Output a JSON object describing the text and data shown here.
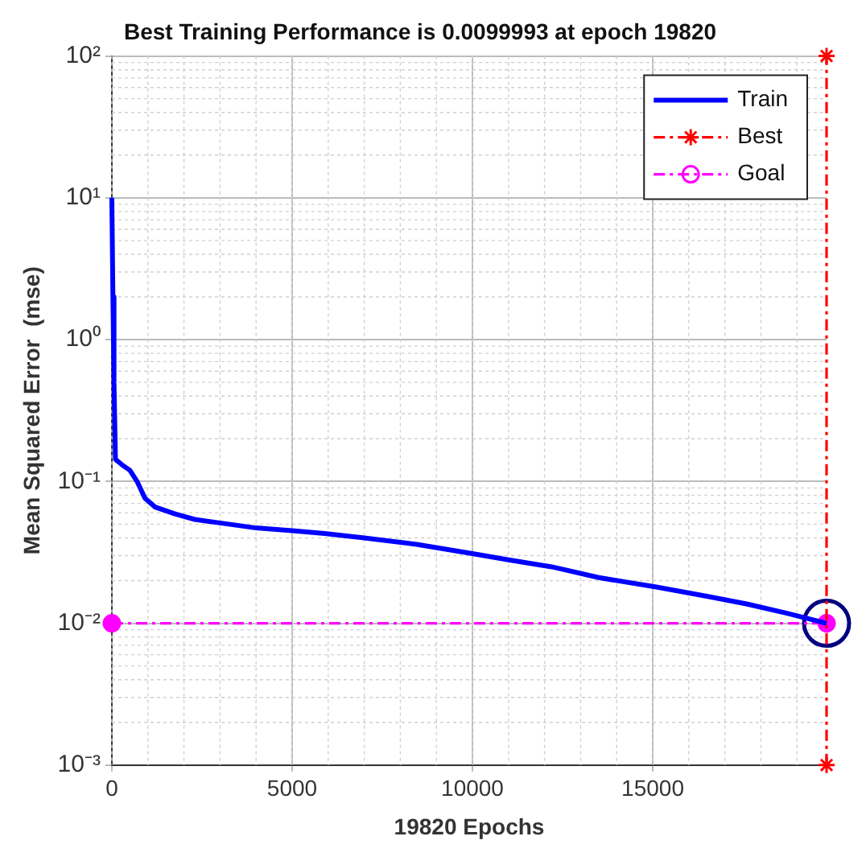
{
  "chart_data": {
    "type": "line",
    "title": "Best Training Performance is 0.0099993 at epoch 19820",
    "xlabel": "19820 Epochs",
    "ylabel": "Mean Squared Error  (mse)",
    "log": "y",
    "grid": true,
    "legend": "top right",
    "xlim": [
      0,
      19820
    ],
    "xticks": [
      0,
      5000,
      10000,
      15000
    ],
    "ylim": [
      0.001,
      100
    ],
    "yticks": [
      {
        "value": 0.001,
        "label": "10⁻³"
      },
      {
        "value": 0.01,
        "label": "10⁻²"
      },
      {
        "value": 0.1,
        "label": "10⁻¹"
      },
      {
        "value": 1,
        "label": "10⁰"
      },
      {
        "value": 10,
        "label": "10¹"
      },
      {
        "value": 100,
        "label": "10²"
      }
    ],
    "series": [
      {
        "name": "Train",
        "color": "#0000ff",
        "marker": "none",
        "line_style": "solid",
        "x": [
          0,
          30,
          60,
          100,
          300,
          500,
          700,
          920,
          1200,
          1750,
          2300,
          3000,
          4000,
          5000,
          5900,
          7000,
          8450,
          10000,
          11000,
          12200,
          13500,
          15100,
          16500,
          17600,
          18700,
          19820
        ],
        "values": [
          10,
          2,
          0.5,
          0.143,
          0.13,
          0.12,
          0.1,
          0.076,
          0.066,
          0.059,
          0.054,
          0.051,
          0.047,
          0.045,
          0.043,
          0.04,
          0.036,
          0.031,
          0.028,
          0.025,
          0.021,
          0.018,
          0.0155,
          0.0137,
          0.0118,
          0.0099993
        ]
      },
      {
        "name": "Best",
        "color": "#ff0000",
        "marker": "cross",
        "line_style": "dashed",
        "x": [
          19820,
          19820
        ],
        "values": [
          0.001,
          100
        ]
      },
      {
        "name": "Goal",
        "color": "#ff00ff",
        "marker": "circle",
        "line_style": "dashed",
        "x": [
          0,
          19820
        ],
        "values": [
          0.01,
          0.01
        ]
      },
      {
        "type": "scatter",
        "color": "#000080",
        "marker": "circle",
        "x": [
          19820
        ],
        "values": [
          0.0099993
        ]
      }
    ]
  }
}
